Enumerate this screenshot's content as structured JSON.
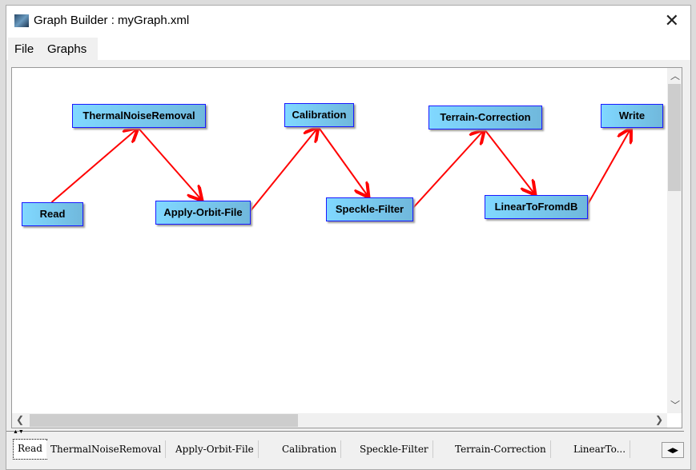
{
  "window": {
    "title": "Graph Builder : myGraph.xml",
    "icon": "snap-app-icon",
    "close_icon": "close-icon"
  },
  "menu": [
    "File",
    "Graphs"
  ],
  "graph": {
    "nodes": [
      "Read",
      "ThermalNoiseRemoval",
      "Apply-Orbit-File",
      "Calibration",
      "Speckle-Filter",
      "Terrain-Correction",
      "LinearToFromdB",
      "Write"
    ],
    "edges": [
      [
        "Read",
        "ThermalNoiseRemoval"
      ],
      [
        "ThermalNoiseRemoval",
        "Apply-Orbit-File"
      ],
      [
        "Apply-Orbit-File",
        "Calibration"
      ],
      [
        "Calibration",
        "Speckle-Filter"
      ],
      [
        "Speckle-Filter",
        "Terrain-Correction"
      ],
      [
        "Terrain-Correction",
        "LinearToFromdB"
      ],
      [
        "LinearToFromdB",
        "Write"
      ]
    ],
    "node_color": "#7fd4fa",
    "node_border": "#1a1aff",
    "edge_color": "#ff0000"
  },
  "tabs": [
    "Read",
    "ThermalNoiseRemoval",
    "Apply-Orbit-File",
    "Calibration",
    "Speckle-Filter",
    "Terrain-Correction",
    "LinearTo..."
  ],
  "active_tab": "Read"
}
